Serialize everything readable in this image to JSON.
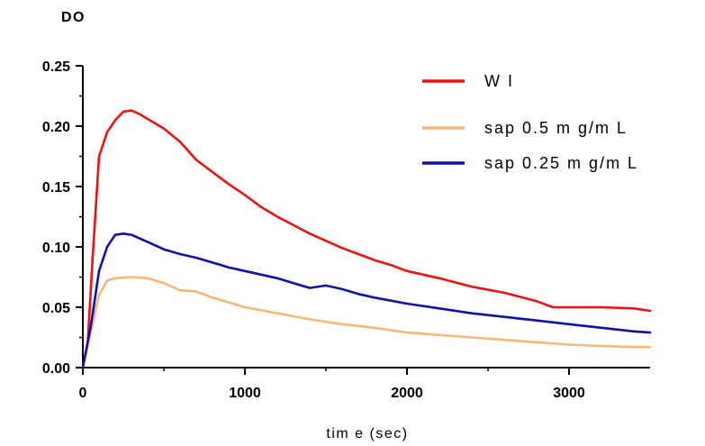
{
  "chart_data": {
    "type": "line",
    "title": "",
    "ylabel": "DO",
    "xlabel": "tim e (sec)",
    "xlim": [
      0,
      3500
    ],
    "ylim": [
      0,
      0.25
    ],
    "xticks": [
      0,
      1000,
      2000,
      3000
    ],
    "xtick_labels": [
      "0",
      "1000",
      "2000",
      "3000"
    ],
    "yticks": [
      0,
      0.05,
      0.1,
      0.15,
      0.2,
      0.25
    ],
    "ytick_labels": [
      "0.00",
      "0.05",
      "0.10",
      "0.15",
      "0.20",
      "0.25"
    ],
    "grid": false,
    "legend_position": "top-right",
    "series": [
      {
        "name": "W I",
        "color": "#ee1111",
        "x": [
          0,
          30,
          60,
          100,
          150,
          200,
          250,
          300,
          350,
          400,
          500,
          600,
          700,
          800,
          900,
          1000,
          1100,
          1200,
          1300,
          1400,
          1500,
          1600,
          1700,
          1800,
          1900,
          2000,
          2200,
          2400,
          2600,
          2800,
          2900,
          3000,
          3200,
          3400,
          3500
        ],
        "y": [
          0,
          0.02,
          0.09,
          0.175,
          0.195,
          0.205,
          0.212,
          0.213,
          0.21,
          0.206,
          0.198,
          0.187,
          0.172,
          0.162,
          0.152,
          0.143,
          0.133,
          0.125,
          0.118,
          0.111,
          0.105,
          0.099,
          0.094,
          0.089,
          0.085,
          0.08,
          0.074,
          0.067,
          0.062,
          0.055,
          0.05,
          0.05,
          0.05,
          0.049,
          0.047
        ]
      },
      {
        "name": "sap 0.5  m g/m L",
        "color": "#f5b87a",
        "x": [
          0,
          50,
          100,
          150,
          200,
          300,
          400,
          500,
          600,
          700,
          800,
          900,
          1000,
          1200,
          1400,
          1600,
          1800,
          2000,
          2200,
          2400,
          2600,
          2800,
          3000,
          3200,
          3400,
          3500
        ],
        "y": [
          0,
          0.03,
          0.06,
          0.072,
          0.074,
          0.075,
          0.074,
          0.07,
          0.064,
          0.063,
          0.058,
          0.054,
          0.05,
          0.045,
          0.04,
          0.036,
          0.033,
          0.029,
          0.027,
          0.025,
          0.023,
          0.021,
          0.019,
          0.018,
          0.017,
          0.017
        ]
      },
      {
        "name": "sap 0.25 m g/m L",
        "color": "#1111aa",
        "x": [
          0,
          50,
          100,
          150,
          200,
          250,
          300,
          400,
          500,
          600,
          700,
          800,
          900,
          1000,
          1100,
          1200,
          1300,
          1400,
          1500,
          1600,
          1700,
          1800,
          2000,
          2200,
          2400,
          2600,
          2800,
          3000,
          3200,
          3400,
          3500
        ],
        "y": [
          0,
          0.035,
          0.08,
          0.1,
          0.11,
          0.111,
          0.11,
          0.104,
          0.098,
          0.094,
          0.091,
          0.087,
          0.083,
          0.08,
          0.077,
          0.074,
          0.07,
          0.066,
          0.068,
          0.065,
          0.061,
          0.058,
          0.053,
          0.049,
          0.045,
          0.042,
          0.039,
          0.036,
          0.033,
          0.03,
          0.029
        ]
      }
    ]
  }
}
